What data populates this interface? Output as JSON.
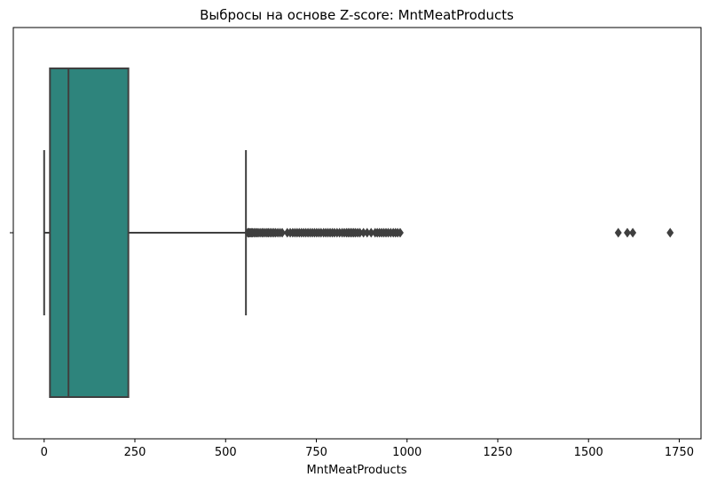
{
  "chart_data": {
    "type": "boxplot",
    "title": "Выбросы на основе Z-score: MntMeatProducts",
    "xlabel": "MntMeatProducts",
    "ylabel": "",
    "xlim": [
      -85,
      1810
    ],
    "xticks": [
      0,
      250,
      500,
      750,
      1000,
      1250,
      1500,
      1750
    ],
    "xtick_labels": [
      "0",
      "250",
      "500",
      "750",
      "1000",
      "1250",
      "1500",
      "1750"
    ],
    "grid": false,
    "box": {
      "whisker_low": 0,
      "q1": 16,
      "median": 67,
      "q3": 232,
      "whisker_high": 556,
      "color": "#2e847c"
    },
    "outliers": [
      561,
      563,
      565,
      568,
      571,
      574,
      578,
      582,
      586,
      590,
      595,
      600,
      604,
      609,
      614,
      618,
      623,
      628,
      633,
      638,
      644,
      650,
      656,
      670,
      678,
      685,
      691,
      697,
      703,
      709,
      715,
      721,
      727,
      733,
      739,
      745,
      751,
      757,
      763,
      770,
      776,
      782,
      788,
      794,
      800,
      807,
      814,
      821,
      827,
      833,
      838,
      843,
      848,
      853,
      858,
      864,
      870,
      880,
      890,
      901,
      912,
      918,
      924,
      930,
      936,
      942,
      948,
      955,
      962,
      968,
      974,
      981,
      1582,
      1607,
      1622,
      1725
    ]
  }
}
